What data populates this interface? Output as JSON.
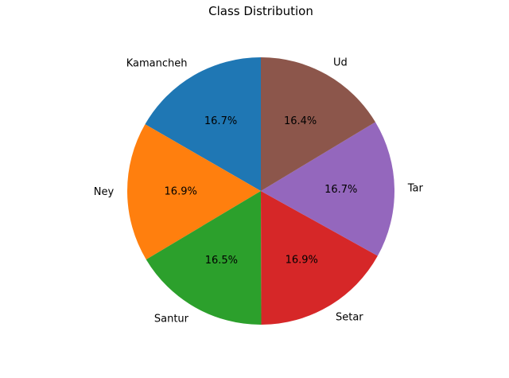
{
  "chart_data": {
    "type": "pie",
    "title": "Class Distribution",
    "start_angle_deg": 90,
    "direction": "counterclockwise",
    "slices": [
      {
        "label": "Kamancheh",
        "value": 16.7,
        "pct_label": "16.7%",
        "color": "#1f77b4"
      },
      {
        "label": "Ney",
        "value": 16.9,
        "pct_label": "16.9%",
        "color": "#ff7f0e"
      },
      {
        "label": "Santur",
        "value": 16.5,
        "pct_label": "16.5%",
        "color": "#2ca02c"
      },
      {
        "label": "Setar",
        "value": 16.9,
        "pct_label": "16.9%",
        "color": "#d62728"
      },
      {
        "label": "Tar",
        "value": 16.7,
        "pct_label": "16.7%",
        "color": "#9467bd"
      },
      {
        "label": "Ud",
        "value": 16.4,
        "pct_label": "16.4%",
        "color": "#8c564b"
      }
    ]
  }
}
